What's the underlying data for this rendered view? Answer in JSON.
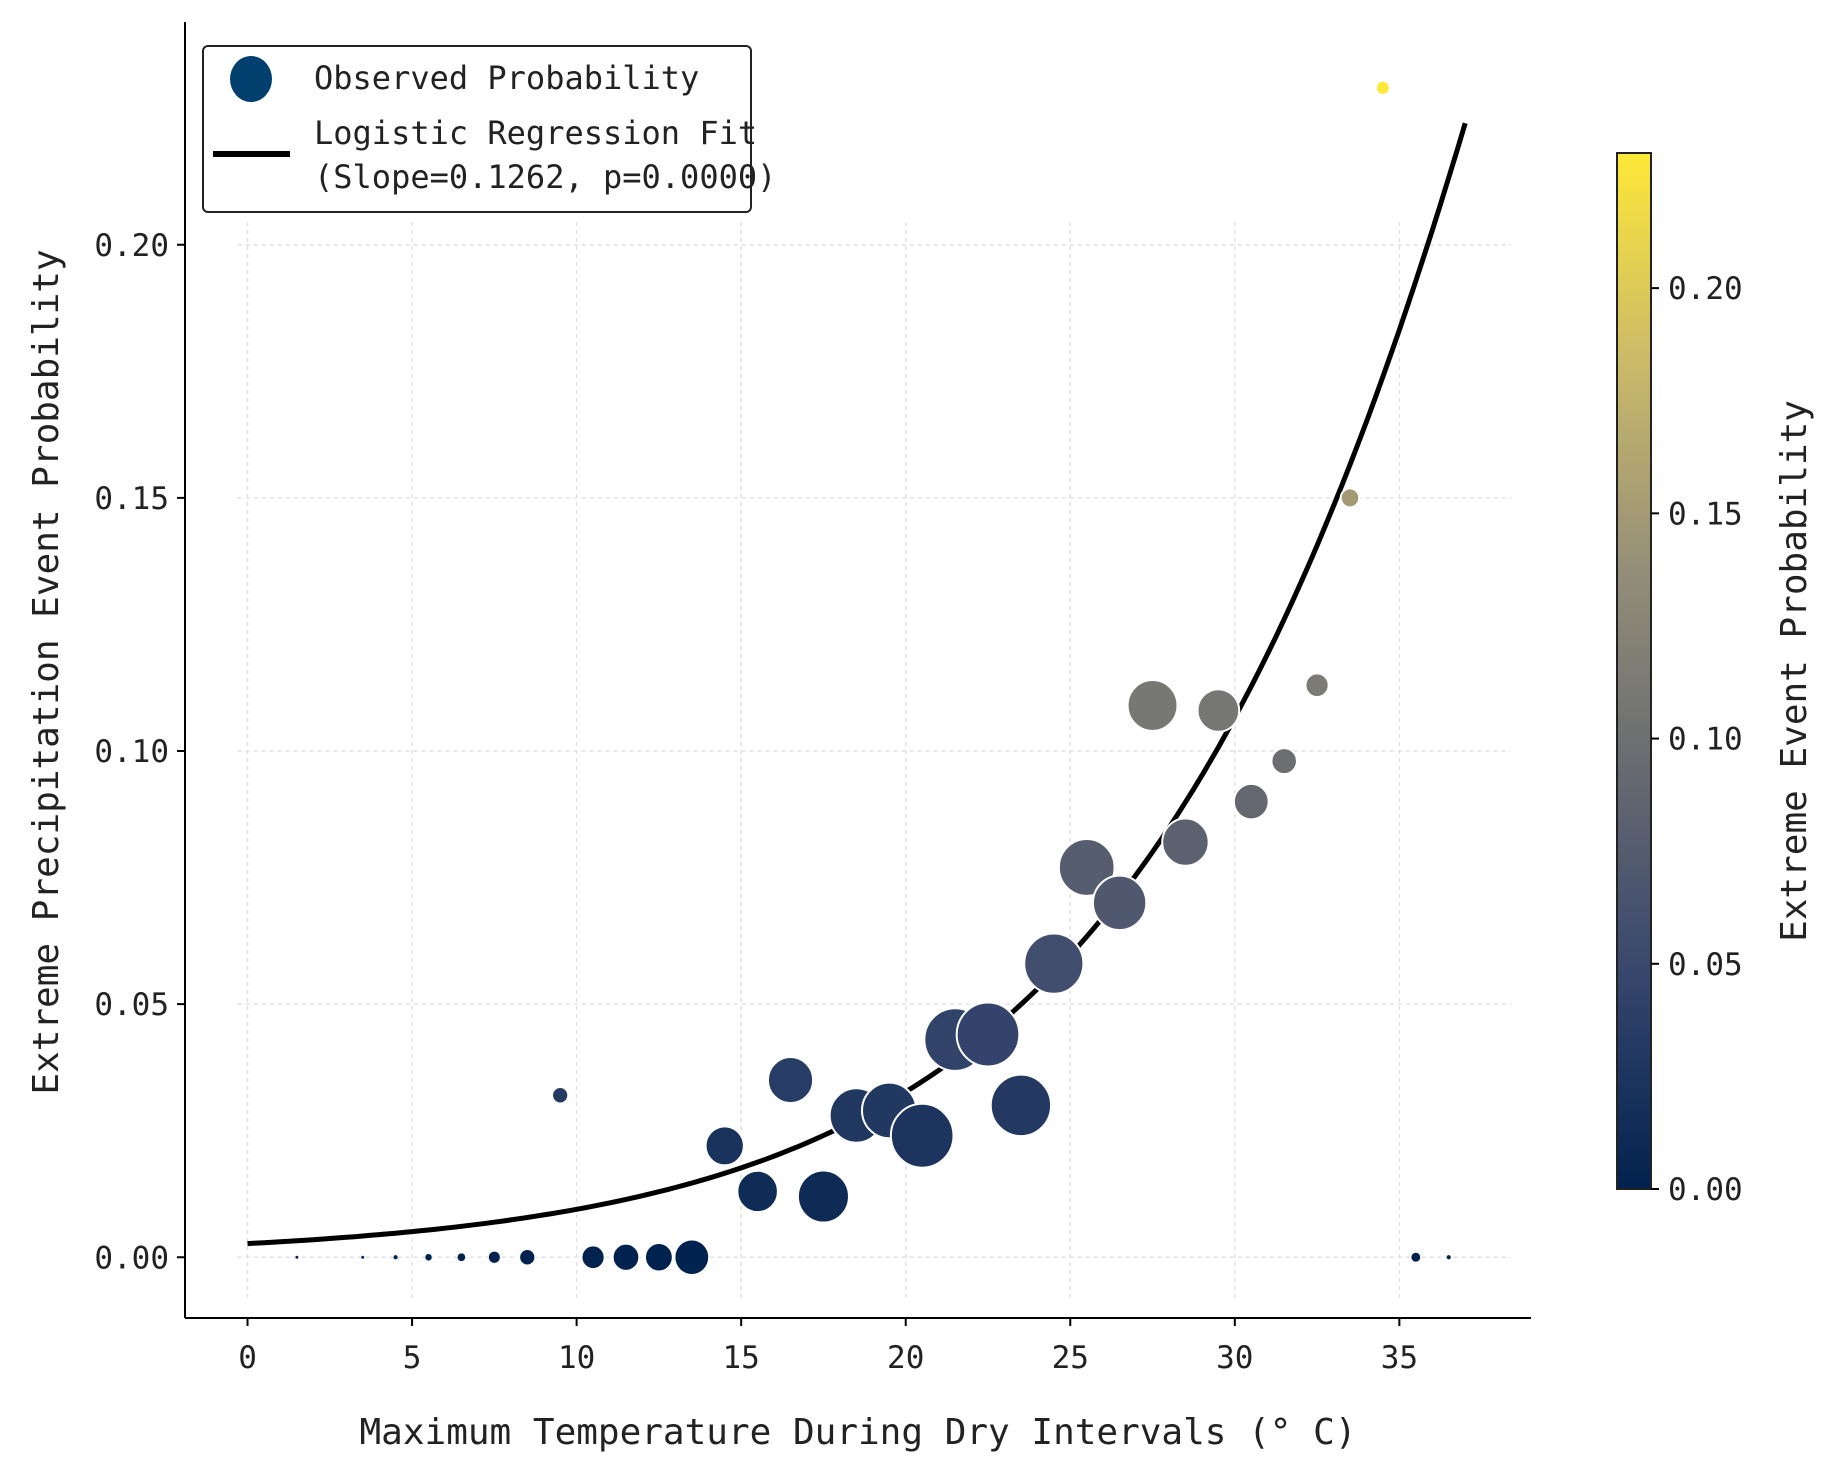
{
  "chart_data": {
    "type": "scatter",
    "xlabel": "Maximum Temperature During Dry Intervals (° C)",
    "ylabel": "Extreme Precipitation Event Probability",
    "xlim": [
      -1.9,
      39.0
    ],
    "ylim": [
      -0.012,
      0.244
    ],
    "xticks": [
      "0",
      "5",
      "10",
      "15",
      "20",
      "25",
      "30",
      "35"
    ],
    "yticks": [
      "0.00",
      "0.05",
      "0.10",
      "0.15",
      "0.20"
    ],
    "grid": true,
    "legend": {
      "placement": "top-left",
      "entries": [
        {
          "label": "Observed Probability"
        },
        {
          "label": "Logistic Regression Fit",
          "label2": "(Slope=0.1262, p=0.0000)"
        }
      ]
    },
    "colorbar": {
      "label": "Extreme Event Probability",
      "range": [
        0,
        0.23
      ],
      "ticks": [
        "0.00",
        "0.05",
        "0.10",
        "0.15",
        "0.20"
      ],
      "colormap": [
        "#00224e",
        "#35456c",
        "#666970",
        "#958f78",
        "#cbba69",
        "#fee838"
      ]
    },
    "series": [
      {
        "name": "Observed Probability",
        "points": [
          {
            "x": 1.5,
            "y": 0.0,
            "size": 0.3
          },
          {
            "x": 3.5,
            "y": 0.0,
            "size": 0.3
          },
          {
            "x": 4.5,
            "y": 0.0,
            "size": 0.4
          },
          {
            "x": 5.5,
            "y": 0.0,
            "size": 0.6
          },
          {
            "x": 6.5,
            "y": 0.0,
            "size": 0.7
          },
          {
            "x": 7.5,
            "y": 0.0,
            "size": 1.0
          },
          {
            "x": 8.5,
            "y": 0.0,
            "size": 1.4
          },
          {
            "x": 9.5,
            "y": 0.032,
            "size": 1.4
          },
          {
            "x": 10.5,
            "y": 0.0,
            "size": 2.0
          },
          {
            "x": 11.5,
            "y": 0.0,
            "size": 2.3
          },
          {
            "x": 12.5,
            "y": 0.0,
            "size": 2.4
          },
          {
            "x": 13.5,
            "y": 0.0,
            "size": 3.0
          },
          {
            "x": 14.5,
            "y": 0.022,
            "size": 3.3
          },
          {
            "x": 15.5,
            "y": 0.013,
            "size": 3.5
          },
          {
            "x": 16.5,
            "y": 0.035,
            "size": 3.9
          },
          {
            "x": 17.5,
            "y": 0.012,
            "size": 4.4
          },
          {
            "x": 18.5,
            "y": 0.028,
            "size": 4.6
          },
          {
            "x": 19.5,
            "y": 0.029,
            "size": 4.7
          },
          {
            "x": 20.5,
            "y": 0.024,
            "size": 5.4
          },
          {
            "x": 21.5,
            "y": 0.043,
            "size": 5.3
          },
          {
            "x": 22.5,
            "y": 0.044,
            "size": 5.4
          },
          {
            "x": 23.5,
            "y": 0.03,
            "size": 5.2
          },
          {
            "x": 24.5,
            "y": 0.058,
            "size": 5.1
          },
          {
            "x": 25.5,
            "y": 0.077,
            "size": 4.8
          },
          {
            "x": 26.5,
            "y": 0.07,
            "size": 4.6
          },
          {
            "x": 27.5,
            "y": 0.109,
            "size": 4.3
          },
          {
            "x": 28.5,
            "y": 0.082,
            "size": 4.0
          },
          {
            "x": 29.5,
            "y": 0.108,
            "size": 3.6
          },
          {
            "x": 30.5,
            "y": 0.09,
            "size": 3.0
          },
          {
            "x": 31.5,
            "y": 0.098,
            "size": 2.2
          },
          {
            "x": 32.5,
            "y": 0.113,
            "size": 2.0
          },
          {
            "x": 33.5,
            "y": 0.15,
            "size": 1.6
          },
          {
            "x": 34.5,
            "y": 0.231,
            "size": 1.2
          },
          {
            "x": 35.5,
            "y": 0.0,
            "size": 0.8
          },
          {
            "x": 36.5,
            "y": 0.0,
            "size": 0.4
          }
        ]
      },
      {
        "name": "Logistic Regression Fit",
        "slope": 0.1262,
        "x_range": [
          0,
          37
        ]
      }
    ]
  }
}
